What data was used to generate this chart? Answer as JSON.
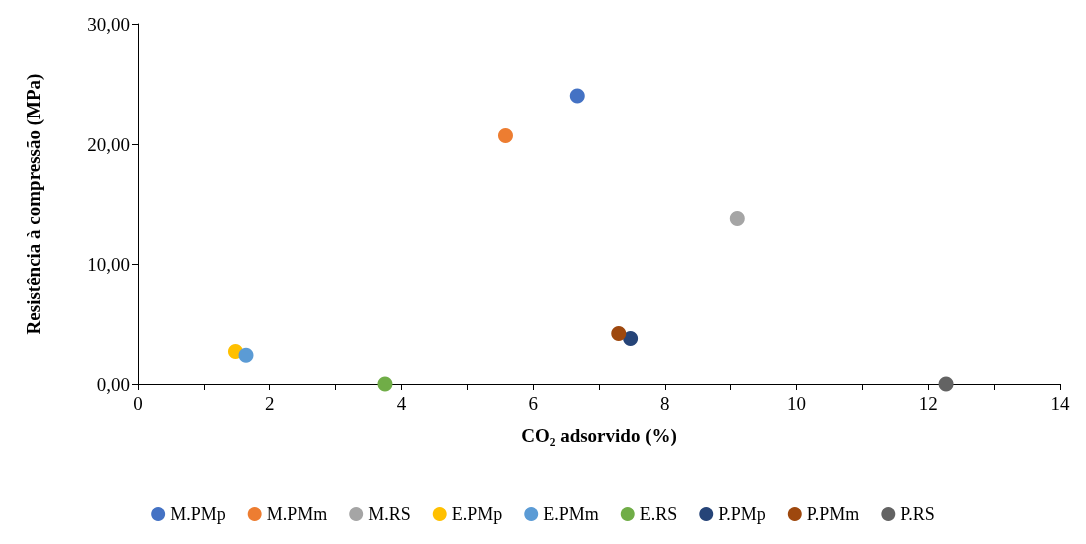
{
  "chart_data": {
    "type": "scatter",
    "xlabel": "CO₂ adsorvido (%)",
    "ylabel": "Resistência à compressão (MPa)",
    "xlim": [
      0,
      14
    ],
    "xticks": [
      0,
      {
        "value": 1,
        "label": null
      },
      2,
      {
        "value": 3,
        "label": null
      },
      4,
      {
        "value": 5,
        "label": null
      },
      6,
      {
        "value": 7,
        "label": null
      },
      8,
      {
        "value": 9,
        "label": null
      },
      10,
      {
        "value": 11,
        "label": null
      },
      12,
      {
        "value": 13,
        "label": null
      },
      14
    ],
    "ylim": [
      0,
      30
    ],
    "yticks": [
      {
        "value": 0,
        "label": "0,00"
      },
      {
        "value": 10,
        "label": "10,00"
      },
      {
        "value": 20,
        "label": "20,00"
      },
      {
        "value": 30,
        "label": "30,00"
      }
    ],
    "grid": false,
    "legend": "bottom",
    "marker": "circle",
    "series": [
      {
        "name": "M.PMp",
        "color": "#4472c4",
        "x": [
          6.67
        ],
        "values": [
          24.0
        ]
      },
      {
        "name": "M.PMm",
        "color": "#ed7d31",
        "x": [
          5.58
        ],
        "values": [
          20.7
        ]
      },
      {
        "name": "M.RS",
        "color": "#a5a5a5",
        "x": [
          9.1
        ],
        "values": [
          13.8
        ]
      },
      {
        "name": "E.PMp",
        "color": "#ffc000",
        "x": [
          1.48
        ],
        "values": [
          2.7
        ]
      },
      {
        "name": "E.PMm",
        "color": "#5b9bd5",
        "x": [
          1.64
        ],
        "values": [
          2.4
        ]
      },
      {
        "name": "E.RS",
        "color": "#70ad47",
        "x": [
          3.75
        ],
        "values": [
          0
        ]
      },
      {
        "name": "P.PMp",
        "color": "#264478",
        "x": [
          7.48
        ],
        "values": [
          3.8
        ]
      },
      {
        "name": "P.PMm",
        "color": "#9e480e",
        "x": [
          7.3
        ],
        "values": [
          4.2
        ]
      },
      {
        "name": "P.RS",
        "color": "#636363",
        "x": [
          12.27
        ],
        "values": [
          0
        ]
      }
    ]
  }
}
